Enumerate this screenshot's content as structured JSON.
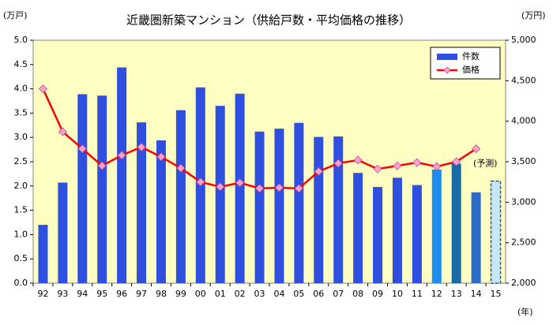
{
  "chart_data": {
    "type": "bar_line",
    "title": "近畿圏新築マンション（供給戸数・平均価格の推移）",
    "y_label": "(万戸)",
    "y2_label": "(万円)",
    "x_label": "(年)",
    "annotation": "(予測)",
    "categories": [
      "92",
      "93",
      "94",
      "95",
      "96",
      "97",
      "98",
      "99",
      "00",
      "01",
      "02",
      "03",
      "04",
      "05",
      "06",
      "07",
      "08",
      "09",
      "10",
      "11",
      "12",
      "13",
      "14",
      "15"
    ],
    "series": [
      {
        "name": "件数",
        "color": "#2f4fe0",
        "colors": [
          "#2f4fe0",
          "#2f4fe0",
          "#2f4fe0",
          "#2f4fe0",
          "#2f4fe0",
          "#2f4fe0",
          "#2f4fe0",
          "#2f4fe0",
          "#2f4fe0",
          "#2f4fe0",
          "#2f4fe0",
          "#2f4fe0",
          "#2f4fe0",
          "#2f4fe0",
          "#2f4fe0",
          "#2f4fe0",
          "#2f4fe0",
          "#2f4fe0",
          "#2f4fe0",
          "#2f4fe0",
          "#1e8cf0",
          "#1a6aa8",
          "#2a6cc8",
          "#c6e8f6"
        ],
        "dashed": [
          false,
          false,
          false,
          false,
          false,
          false,
          false,
          false,
          false,
          false,
          false,
          false,
          false,
          false,
          false,
          false,
          false,
          false,
          false,
          false,
          false,
          false,
          false,
          true
        ],
        "values": [
          1.2,
          2.07,
          3.89,
          3.86,
          4.44,
          3.31,
          2.94,
          3.56,
          4.03,
          3.65,
          3.9,
          3.12,
          3.18,
          3.3,
          3.01,
          3.02,
          2.27,
          1.98,
          2.17,
          2.02,
          2.34,
          2.46,
          1.87,
          2.1
        ]
      },
      {
        "name": "価格",
        "color": "#ff0000",
        "marker_color": "#ff9fd0",
        "axis": "y2",
        "values": [
          4400,
          3870,
          3660,
          3450,
          3580,
          3680,
          3560,
          3420,
          3250,
          3190,
          3240,
          3170,
          3180,
          3170,
          3380,
          3480,
          3520,
          3410,
          3450,
          3490,
          3440,
          3500,
          3660,
          null
        ]
      }
    ],
    "ylim": [
      0,
      5
    ],
    "yticks": [
      {
        "value": 0,
        "label": "0.0"
      },
      0.5,
      {
        "value": 1,
        "label": "1.0"
      },
      1.5,
      {
        "value": 2,
        "label": "2.0"
      },
      2.5,
      {
        "value": 3,
        "label": "3.0"
      },
      3.5,
      {
        "value": 4,
        "label": "4.0"
      },
      4.5,
      {
        "value": 5,
        "label": "5.0"
      }
    ],
    "y2lim": [
      2000,
      5000
    ],
    "y2ticks": [
      {
        "value": 2000,
        "label": "2,000"
      },
      {
        "value": 2500,
        "label": "2,500"
      },
      {
        "value": 3000,
        "label": "3,000"
      },
      {
        "value": 3500,
        "label": "3,500"
      },
      {
        "value": 4000,
        "label": "4,000"
      },
      {
        "value": 4500,
        "label": "4,500"
      },
      {
        "value": 5000,
        "label": "5,000"
      }
    ],
    "background": "#ffffc4",
    "legend": "upper right"
  }
}
